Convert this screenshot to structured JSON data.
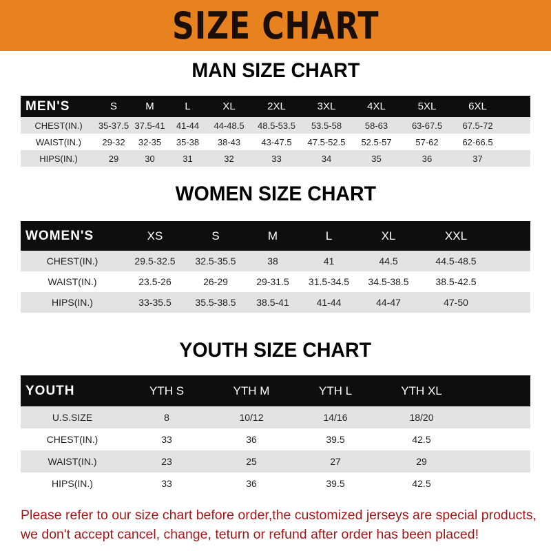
{
  "banner_title": "SIZE CHART",
  "men": {
    "title": "MAN SIZE CHART",
    "header": [
      "MEN'S",
      "S",
      "M",
      "L",
      "XL",
      "2XL",
      "3XL",
      "4XL",
      "5XL",
      "6XL"
    ],
    "rows": [
      [
        "CHEST(IN.)",
        "35-37.5",
        "37.5-41",
        "41-44",
        "44-48.5",
        "48.5-53.5",
        "53.5-58",
        "58-63",
        "63-67.5",
        "67.5-72"
      ],
      [
        "WAIST(IN.)",
        "29-32",
        "32-35",
        "35-38",
        "38-43",
        "43-47.5",
        "47.5-52.5",
        "52.5-57",
        "57-62",
        "62-66.5"
      ],
      [
        "HIPS(IN.)",
        "29",
        "30",
        "31",
        "32",
        "33",
        "34",
        "35",
        "36",
        "37"
      ]
    ]
  },
  "women": {
    "title": "WOMEN SIZE CHART",
    "header": [
      "WOMEN'S",
      "XS",
      "S",
      "M",
      "L",
      "XL",
      "XXL"
    ],
    "rows": [
      [
        "CHEST(IN.)",
        "29.5-32.5",
        "32.5-35.5",
        "38",
        "41",
        "44.5",
        "44.5-48.5"
      ],
      [
        "WAIST(IN.)",
        "23.5-26",
        "26-29",
        "29-31.5",
        "31.5-34.5",
        "34.5-38.5",
        "38.5-42.5"
      ],
      [
        "HIPS(IN.)",
        "33-35.5",
        "35.5-38.5",
        "38.5-41",
        "41-44",
        "44-47",
        "47-50"
      ]
    ]
  },
  "youth": {
    "title": "YOUTH SIZE CHART",
    "header": [
      "YOUTH",
      "YTH S",
      "YTH M",
      "YTH L",
      "YTH XL"
    ],
    "rows": [
      [
        "U.S.SIZE",
        "8",
        "10/12",
        "14/16",
        "18/20"
      ],
      [
        "CHEST(IN.)",
        "33",
        "36",
        "39.5",
        "42.5"
      ],
      [
        "WAIST(IN.)",
        "23",
        "25",
        "27",
        "29"
      ],
      [
        "HIPS(IN.)",
        "33",
        "36",
        "39.5",
        "42.5"
      ]
    ]
  },
  "notice": {
    "line1": "Please refer to our size chart before order,the customized jerseys are special products,",
    "line2": "we don't accept cancel, change, teturn or refund after order has been placed!"
  },
  "colors": {
    "banner": "#e8821e",
    "header_row": "#0e0e0e",
    "stripe": "#e3e3e3",
    "notice": "#a01818"
  }
}
